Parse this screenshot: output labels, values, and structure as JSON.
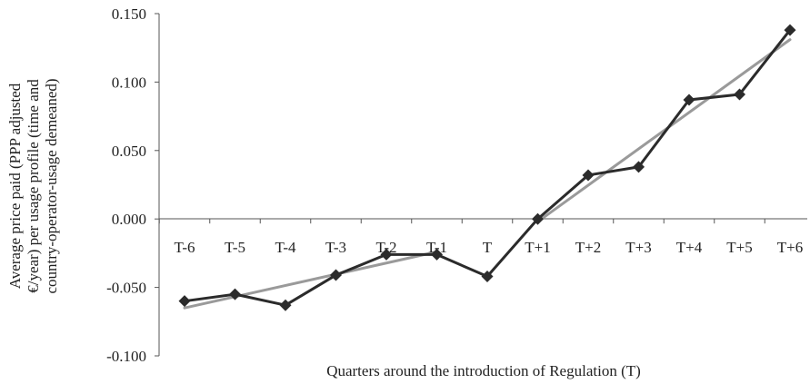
{
  "chart_data": {
    "type": "line",
    "categories": [
      "T-6",
      "T-5",
      "T-4",
      "T-3",
      "T-2",
      "T-1",
      "T",
      "T+1",
      "T+2",
      "T+3",
      "T+4",
      "T+5",
      "T+6"
    ],
    "series": [
      {
        "values": [
          -0.06,
          -0.055,
          -0.063,
          -0.041,
          -0.026,
          -0.026,
          -0.042,
          0.0,
          0.032,
          0.038,
          0.087,
          0.091,
          0.138
        ],
        "color": "#2b2b2b",
        "marker": "diamond"
      }
    ],
    "trend_lines": [
      {
        "from_index": 0,
        "to_index": 5,
        "start": -0.065,
        "end": -0.024,
        "color": "#9a9a9a"
      },
      {
        "from_index": 7,
        "to_index": 12,
        "start": -0.002,
        "end": 0.131,
        "color": "#9a9a9a"
      }
    ],
    "yticks": [
      "0.150",
      "0.100",
      "0.050",
      "0.000",
      "-0.050",
      "-0.100"
    ],
    "ytick_values": [
      0.15,
      0.1,
      0.05,
      0.0,
      -0.05,
      -0.1
    ],
    "ylim": [
      -0.1,
      0.15
    ],
    "xlabel": "Quarters around the introduction of Regulation (T)",
    "ylabel_lines": [
      "Average price paid (PPP adjusted",
      "€/year) per usage profile (time and",
      "country-operator-usage demeaned)"
    ],
    "grid": false,
    "legend": "none"
  }
}
